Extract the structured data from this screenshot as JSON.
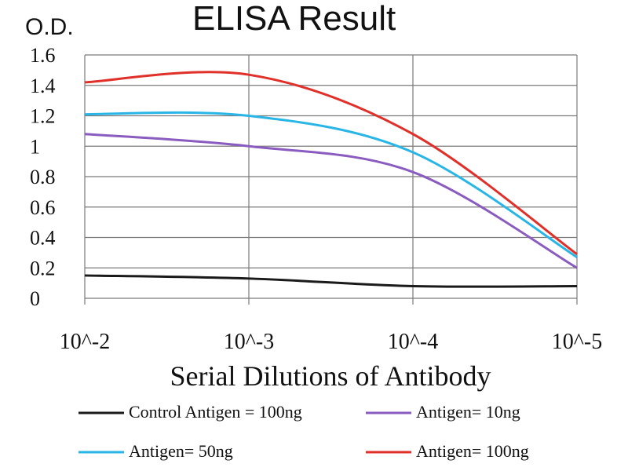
{
  "chart_data": {
    "type": "line",
    "title": "ELISA Result",
    "ylabel": "O.D.",
    "xlabel": "Serial Dilutions of Antibody",
    "categories": [
      "10^-2",
      "10^-3",
      "10^-4",
      "10^-5"
    ],
    "ylim": [
      0,
      1.6
    ],
    "yticks": [
      "0",
      "0.2",
      "0.4",
      "0.6",
      "0.8",
      "1",
      "1.2",
      "1.4",
      "1.6"
    ],
    "grid": true,
    "legend_position": "bottom",
    "series": [
      {
        "name": "Control Antigen = 100ng",
        "color": "#1a1a1a",
        "values": [
          0.15,
          0.13,
          0.08,
          0.08
        ]
      },
      {
        "name": "Antigen= 10ng",
        "color": "#8a5cc0",
        "values": [
          1.08,
          1.0,
          0.83,
          0.2
        ]
      },
      {
        "name": "Antigen= 50ng",
        "color": "#29b6e6",
        "values": [
          1.21,
          1.2,
          0.96,
          0.27
        ]
      },
      {
        "name": "Antigen= 100ng",
        "color": "#e0302a",
        "values": [
          1.42,
          1.47,
          1.08,
          0.29
        ]
      }
    ]
  }
}
